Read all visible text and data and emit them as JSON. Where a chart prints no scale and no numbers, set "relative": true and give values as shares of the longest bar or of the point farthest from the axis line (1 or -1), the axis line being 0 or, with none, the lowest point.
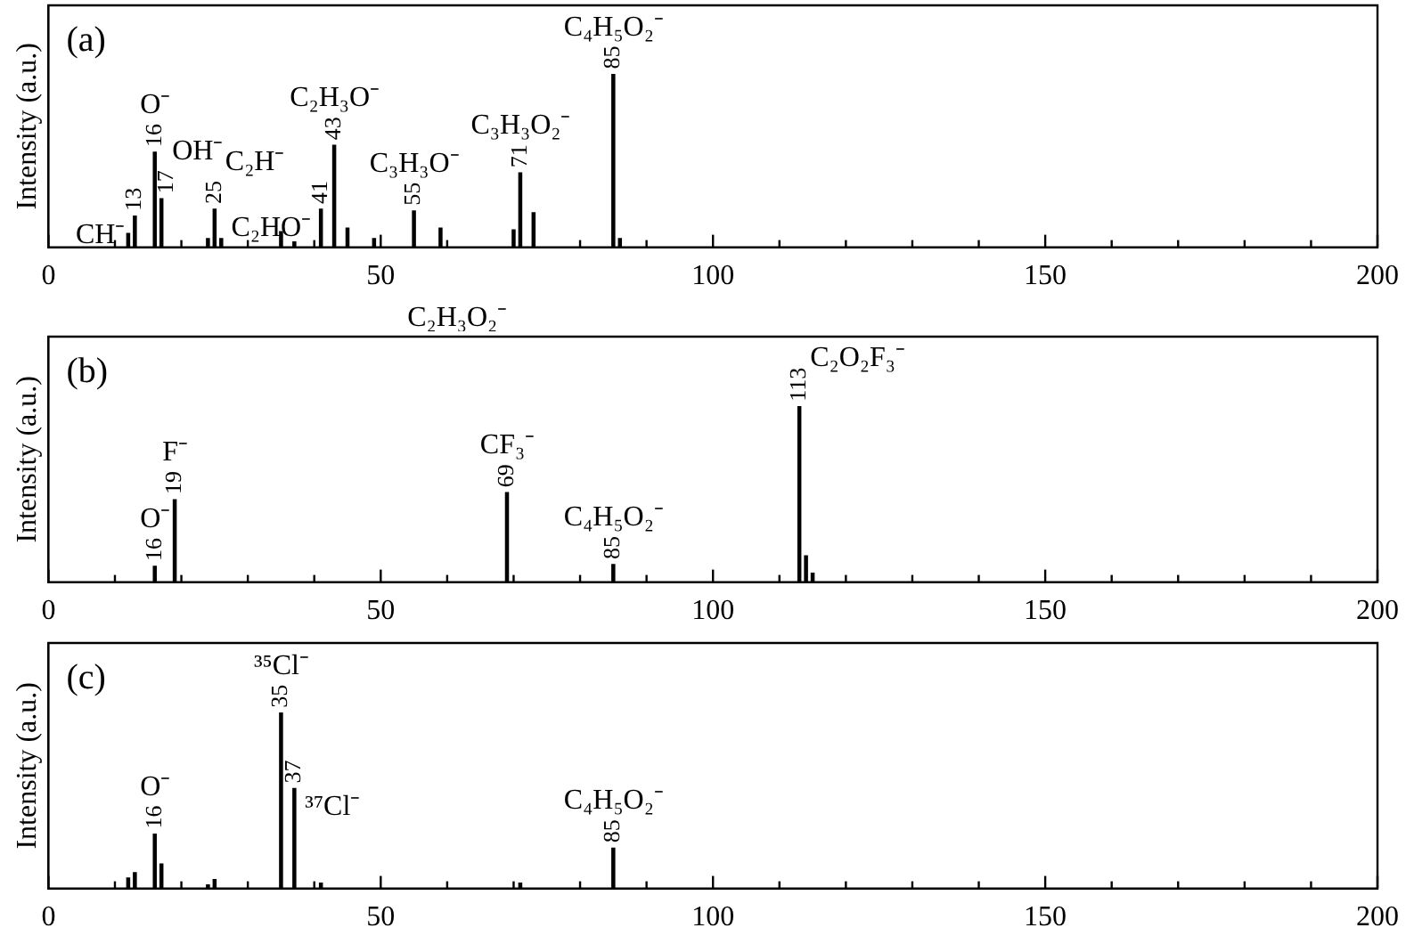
{
  "chart_data": [
    {
      "type": "bar",
      "title": "(a)",
      "ylabel": "Intensity (a.u.)",
      "relative": true,
      "xlim": [
        0,
        200
      ],
      "xticks": [
        0,
        {
          "value": 10,
          "label": null
        },
        {
          "value": 20,
          "label": null
        },
        {
          "value": 30,
          "label": null
        },
        {
          "value": 40,
          "label": null
        },
        50,
        {
          "value": 60,
          "label": null
        },
        {
          "value": 70,
          "label": null
        },
        {
          "value": 80,
          "label": null
        },
        {
          "value": 90,
          "label": null
        },
        100,
        {
          "value": 110,
          "label": null
        },
        {
          "value": 120,
          "label": null
        },
        {
          "value": 130,
          "label": null
        },
        {
          "value": 140,
          "label": null
        },
        150,
        {
          "value": 160,
          "label": null
        },
        {
          "value": 170,
          "label": null
        },
        {
          "value": 180,
          "label": null
        },
        {
          "value": 190,
          "label": null
        },
        200
      ],
      "grid": false,
      "legend": false,
      "series": [
        {
          "color": "#000000",
          "x": [
            12,
            13,
            16,
            17,
            24,
            25,
            26,
            35,
            37,
            41,
            43,
            45,
            49,
            55,
            59,
            70,
            71,
            73,
            85,
            86
          ],
          "values": [
            0.08,
            0.18,
            0.55,
            0.28,
            0.05,
            0.22,
            0.05,
            0.09,
            0.03,
            0.22,
            0.59,
            0.11,
            0.05,
            0.21,
            0.11,
            0.1,
            0.43,
            0.2,
            1,
            0.05
          ]
        }
      ],
      "annotations": [
        {
          "text": "13",
          "x": 13,
          "y": 0.18
        },
        {
          "text": "16",
          "x": 16,
          "y": 0.55
        },
        {
          "text": "17",
          "x": 17,
          "y": 0.28
        },
        {
          "text": "25",
          "x": 25,
          "y": 0.22
        },
        {
          "text": "41",
          "x": 41,
          "y": 0.22
        },
        {
          "text": "43",
          "x": 43,
          "y": 0.59
        },
        {
          "text": "55",
          "x": 55,
          "y": 0.21
        },
        {
          "text": "71",
          "x": 71,
          "y": 0.43
        },
        {
          "text": "85",
          "x": 85,
          "y": 1
        },
        {
          "text": "O⁻",
          "x": 16,
          "y": 0.55
        },
        {
          "text": "OH⁻",
          "x": 17,
          "y": 0.28
        },
        {
          "text": "CH⁻",
          "x": 13,
          "y": 0.18
        },
        {
          "text": "C₂H⁻",
          "x": 25,
          "y": 0.22
        },
        {
          "text": "C₂H₃O⁻",
          "x": 43,
          "y": 0.59
        },
        {
          "text": "C₂HO⁻",
          "x": 41,
          "y": 0.22
        },
        {
          "text": "C₃H₃O⁻",
          "x": 55,
          "y": 0.21
        },
        {
          "text": "C₃H₃O₂⁻",
          "x": 71,
          "y": 0.43
        },
        {
          "text": "C₄H₅O₂⁻",
          "x": 85,
          "y": 1
        },
        "C₂H₃O₂⁻"
      ]
    },
    {
      "type": "bar",
      "title": "(b)",
      "ylabel": "Intensity (a.u.)",
      "relative": true,
      "xlim": [
        0,
        200
      ],
      "xticks": [
        0,
        {
          "value": 10,
          "label": null
        },
        {
          "value": 20,
          "label": null
        },
        {
          "value": 30,
          "label": null
        },
        {
          "value": 40,
          "label": null
        },
        50,
        {
          "value": 60,
          "label": null
        },
        {
          "value": 70,
          "label": null
        },
        {
          "value": 80,
          "label": null
        },
        {
          "value": 90,
          "label": null
        },
        100,
        {
          "value": 110,
          "label": null
        },
        {
          "value": 120,
          "label": null
        },
        {
          "value": 130,
          "label": null
        },
        {
          "value": 140,
          "label": null
        },
        150,
        {
          "value": 160,
          "label": null
        },
        {
          "value": 170,
          "label": null
        },
        {
          "value": 180,
          "label": null
        },
        {
          "value": 190,
          "label": null
        },
        200
      ],
      "grid": false,
      "legend": false,
      "series": [
        {
          "color": "#000000",
          "x": [
            16,
            19,
            69,
            85,
            113,
            114,
            115
          ],
          "values": [
            0.09,
            0.47,
            0.51,
            0.1,
            1,
            0.15,
            0.05
          ]
        }
      ],
      "annotations": [
        {
          "text": "16",
          "x": 16,
          "y": 0.09
        },
        {
          "text": "19",
          "x": 19,
          "y": 0.47
        },
        {
          "text": "69",
          "x": 69,
          "y": 0.51
        },
        {
          "text": "85",
          "x": 85,
          "y": 0.1
        },
        {
          "text": "113",
          "x": 113,
          "y": 1
        },
        {
          "text": "O⁻",
          "x": 16,
          "y": 0.09
        },
        {
          "text": "F⁻",
          "x": 19,
          "y": 0.47
        },
        {
          "text": "CF₃⁻",
          "x": 69,
          "y": 0.51
        },
        {
          "text": "C₄H₅O₂⁻",
          "x": 85,
          "y": 0.1
        },
        {
          "text": "C₂O₂F₃⁻",
          "x": 113,
          "y": 1
        }
      ]
    },
    {
      "type": "bar",
      "title": "(c)",
      "ylabel": "Intensity (a.u.)",
      "relative": true,
      "xlim": [
        0,
        200
      ],
      "xticks": [
        0,
        {
          "value": 10,
          "label": null
        },
        {
          "value": 20,
          "label": null
        },
        {
          "value": 30,
          "label": null
        },
        {
          "value": 40,
          "label": null
        },
        50,
        {
          "value": 60,
          "label": null
        },
        {
          "value": 70,
          "label": null
        },
        {
          "value": 80,
          "label": null
        },
        {
          "value": 90,
          "label": null
        },
        100,
        {
          "value": 110,
          "label": null
        },
        {
          "value": 120,
          "label": null
        },
        {
          "value": 130,
          "label": null
        },
        {
          "value": 140,
          "label": null
        },
        150,
        {
          "value": 160,
          "label": null
        },
        {
          "value": 170,
          "label": null
        },
        {
          "value": 180,
          "label": null
        },
        {
          "value": 190,
          "label": null
        },
        200
      ],
      "grid": false,
      "legend": false,
      "series": [
        {
          "color": "#000000",
          "x": [
            12,
            13,
            16,
            17,
            24,
            25,
            35,
            37,
            41,
            71,
            85
          ],
          "values": [
            0.06,
            0.09,
            0.31,
            0.14,
            0.02,
            0.05,
            1,
            0.57,
            0.03,
            0.03,
            0.23
          ]
        }
      ],
      "annotations": [
        {
          "text": "16",
          "x": 16,
          "y": 0.31
        },
        {
          "text": "35",
          "x": 35,
          "y": 1
        },
        {
          "text": "37",
          "x": 37,
          "y": 0.57
        },
        {
          "text": "85",
          "x": 85,
          "y": 0.23
        },
        {
          "text": "O⁻",
          "x": 16,
          "y": 0.31
        },
        {
          "text": "³⁵Cl⁻",
          "x": 35,
          "y": 1
        },
        {
          "text": "³⁷Cl⁻",
          "x": 37,
          "y": 0.57
        },
        {
          "text": "C₄H₅O₂⁻",
          "x": 85,
          "y": 0.23
        }
      ]
    }
  ]
}
